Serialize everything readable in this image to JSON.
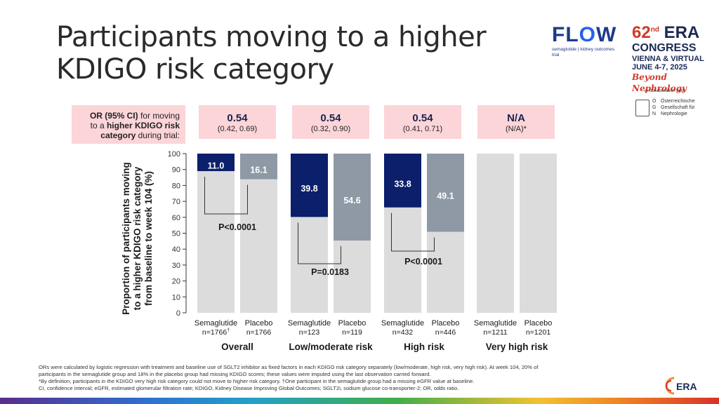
{
  "slide": {
    "title_line1": "Participants moving to a higher",
    "title_line2": "KDIGO risk category"
  },
  "logos": {
    "flow_word_prefix": "FL",
    "flow_word_o": "O",
    "flow_word_suffix": "W",
    "flow_sub_a": "semaglutide",
    "flow_sub_b": "kidney",
    "flow_sub_c": "outcomes trial",
    "era_number": "62",
    "era_sup": "nd",
    "era_name": "ERA",
    "era_congress": "CONGRESS",
    "era_place": "VIENNA & VIRTUAL",
    "era_dates": "JUNE 4-7, 2025",
    "era_tagline": "Beyond Nephrology",
    "collab": "in collaboration with",
    "oegn_letters": [
      "Ö",
      "G",
      "N"
    ],
    "oegn_words": [
      "Österreichische",
      "Gesellschaft für",
      "Nephrologie"
    ],
    "era_bottom": "ERA"
  },
  "or_header": {
    "label_bold1": "OR (95% CI)",
    "label_rest1": " for moving",
    "label_rest2a": "to a ",
    "label_bold2": "higher KDIGO risk",
    "label_bold3": "category",
    "label_rest3": " during trial:",
    "groups": [
      {
        "value": "0.54",
        "ci": "(0.42, 0.69)"
      },
      {
        "value": "0.54",
        "ci": "(0.32, 0.90)"
      },
      {
        "value": "0.54",
        "ci": "(0.41, 0.71)"
      },
      {
        "value": "N/A",
        "ci": "(N/A)*"
      }
    ]
  },
  "chart_data": {
    "type": "bar",
    "ylabel_lines": [
      "Proportion of participants  moving",
      "to a higher KDIGO risk category",
      "from baseline to week 104 (%)"
    ],
    "ylim": [
      0,
      100
    ],
    "yticks": [
      0,
      10,
      20,
      30,
      40,
      50,
      60,
      70,
      80,
      90,
      100
    ],
    "groups": [
      {
        "name": "Overall",
        "p_value": "P<0.0001",
        "bars": [
          {
            "treatment": "Semaglutide",
            "n": "n=1766",
            "n_sup": "†",
            "value": 11.0,
            "label": "11.0"
          },
          {
            "treatment": "Placebo",
            "n": "n=1766",
            "n_sup": "",
            "value": 16.1,
            "label": "16.1"
          }
        ]
      },
      {
        "name": "Low/moderate risk",
        "p_value": "P=0.0183",
        "bars": [
          {
            "treatment": "Semaglutide",
            "n": "n=123",
            "n_sup": "",
            "value": 39.8,
            "label": "39.8"
          },
          {
            "treatment": "Placebo",
            "n": "n=119",
            "n_sup": "",
            "value": 54.6,
            "label": "54.6"
          }
        ]
      },
      {
        "name": "High risk",
        "p_value": "P<0.0001",
        "bars": [
          {
            "treatment": "Semaglutide",
            "n": "n=432",
            "n_sup": "",
            "value": 33.8,
            "label": "33.8"
          },
          {
            "treatment": "Placebo",
            "n": "n=446",
            "n_sup": "",
            "value": 49.1,
            "label": "49.1"
          }
        ]
      },
      {
        "name": "Very high risk",
        "p_value": "",
        "bars": [
          {
            "treatment": "Semaglutide",
            "n": "n=1211",
            "n_sup": "",
            "value": null,
            "label": ""
          },
          {
            "treatment": "Placebo",
            "n": "n=1201",
            "n_sup": "",
            "value": null,
            "label": ""
          }
        ]
      }
    ],
    "colors": {
      "semaglutide": "#0b1f6b",
      "placebo": "#8f99a5",
      "background": "#dcdcdc",
      "bracket": "#333333"
    }
  },
  "footnotes": [
    "ORs were calculated by logistic regression with treatment and baseline use of SGLT2 inhibitor as fixed factors in each KDIGO risk category separately (low/moderate, high risk, very high risk). At week 104, 20% of",
    "participants in the semaglutide group and 18% in the placebo group had missing KDIGO scores; these values were imputed using the last observation carried forward.",
    "*By definition, participants in the KDIGO very high risk category could not move to higher risk category. †One participant in the semaglutide group had a missing eGFR value at baseline.",
    "CI, confidence interval; eGFR, estimated glomerular filtration rate; KDIGO, Kidney Disease Improving Global Outcomes; SGLT2i, sodium glucose co-transporter-2; OR, odds ratio."
  ]
}
